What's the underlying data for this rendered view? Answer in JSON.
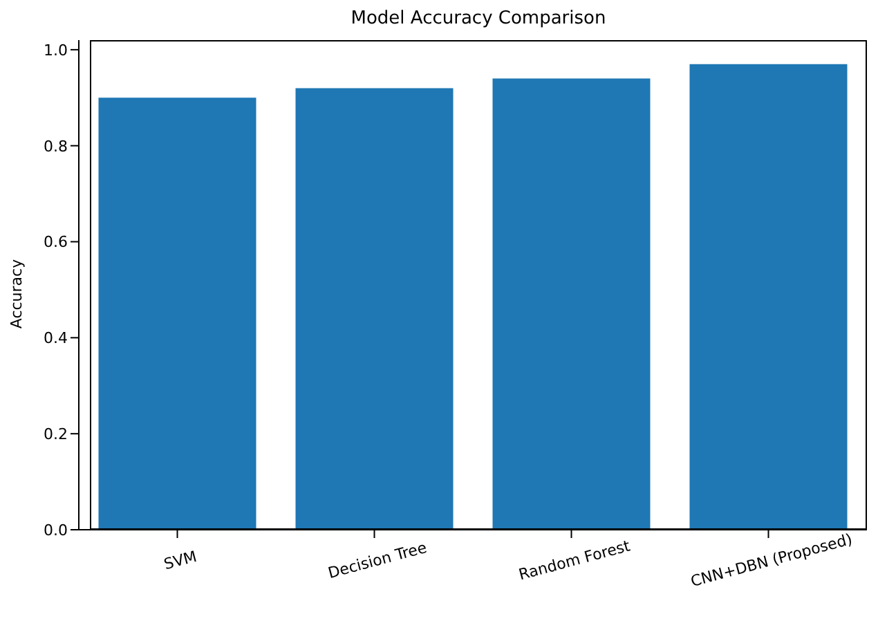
{
  "chart_data": {
    "type": "bar",
    "title": "Model Accuracy Comparison",
    "ylabel": "Accuracy",
    "categories": [
      "SVM",
      "Decision Tree",
      "Random Forest",
      "CNN+DBN (Proposed)"
    ],
    "values": [
      0.9,
      0.92,
      0.94,
      0.97
    ],
    "color": "#1f77b4",
    "ylim": [
      0,
      1.02
    ],
    "yticks": [
      {
        "value": 0,
        "label": "0.0"
      },
      {
        "value": 0.2,
        "label": "0.2"
      },
      {
        "value": 0.4,
        "label": "0.4"
      },
      {
        "value": 0.6,
        "label": "0.6"
      },
      {
        "value": 0.8,
        "label": "0.8"
      },
      {
        "value": 1,
        "label": "1.0"
      }
    ]
  }
}
